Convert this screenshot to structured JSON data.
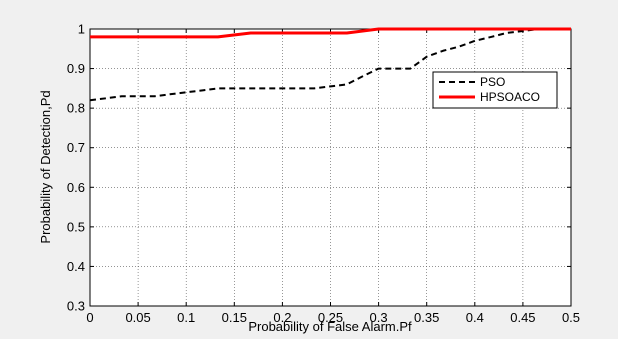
{
  "chart_data": {
    "type": "line",
    "title": "",
    "xlabel": "Probability of False Alarm.Pf",
    "ylabel": "Probability of Detection,Pd",
    "xlim": [
      0,
      0.5
    ],
    "ylim": [
      0.3,
      1
    ],
    "x_ticks": [
      "0",
      "0.05",
      "0.1",
      "0.15",
      "0.2",
      "0.25",
      "0.3",
      "0.35",
      "0.4",
      "0.45",
      "0.5"
    ],
    "y_ticks": [
      "0.3",
      "0.4",
      "0.5",
      "0.6",
      "0.7",
      "0.8",
      "0.9",
      "1"
    ],
    "grid": true,
    "legend_position": "top-right",
    "series": [
      {
        "name": "PSO",
        "color": "#000000",
        "line_style": "dashed",
        "x": [
          0,
          0.017,
          0.033,
          0.05,
          0.067,
          0.083,
          0.1,
          0.117,
          0.133,
          0.15,
          0.167,
          0.183,
          0.2,
          0.217,
          0.233,
          0.25,
          0.267,
          0.283,
          0.3,
          0.317,
          0.333,
          0.35,
          0.367,
          0.383,
          0.4,
          0.417,
          0.433,
          0.45,
          0.467,
          0.483,
          0.5
        ],
        "values": [
          0.82,
          0.825,
          0.83,
          0.83,
          0.83,
          0.835,
          0.84,
          0.845,
          0.85,
          0.85,
          0.85,
          0.85,
          0.85,
          0.85,
          0.85,
          0.855,
          0.86,
          0.88,
          0.9,
          0.9,
          0.9,
          0.93,
          0.945,
          0.955,
          0.97,
          0.98,
          0.99,
          0.995,
          1.0,
          1.0,
          1.0
        ]
      },
      {
        "name": "HPSOACO",
        "color": "#ff0000",
        "line_style": "solid",
        "x": [
          0,
          0.133,
          0.167,
          0.267,
          0.3,
          0.5
        ],
        "values": [
          0.98,
          0.98,
          0.99,
          0.99,
          1.0,
          1.0
        ]
      }
    ]
  }
}
